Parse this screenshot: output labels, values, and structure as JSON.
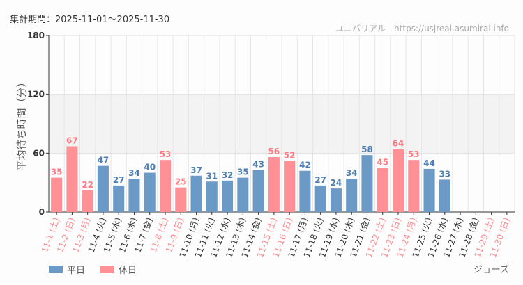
{
  "header": {
    "period": "集計期間：2025-11-01～2025-11-30",
    "credit": "ユニバリアル　https://usjreal.asumirai.info"
  },
  "attraction": "ジョーズ",
  "legend": {
    "weekday": "平日",
    "holiday": "休日"
  },
  "colors": {
    "weekday": "#6c9ac6",
    "holiday": "#ff9095",
    "band": "#f3f3f3"
  },
  "chart_data": {
    "type": "bar",
    "ylabel": "平均待ち時間（分）",
    "ylim": [
      0,
      180
    ],
    "yticks": [
      "0",
      "60",
      "120",
      "180"
    ],
    "grid": true,
    "shaded_band": [
      60,
      120
    ],
    "legend_position": "bottom-left",
    "categories": [
      "11-1 (土)",
      "11-2 (日)",
      "11-3 (月)",
      "11-4 (火)",
      "11-5 (水)",
      "11-6 (木)",
      "11-7 (金)",
      "11-8 (土)",
      "11-9 (日)",
      "11-10 (月)",
      "11-11 (火)",
      "11-12 (水)",
      "11-13 (木)",
      "11-14 (金)",
      "11-15 (土)",
      "11-16 (日)",
      "11-17 (月)",
      "11-18 (火)",
      "11-19 (水)",
      "11-20 (木)",
      "11-21 (金)",
      "11-22 (土)",
      "11-23 (日)",
      "11-24 (月)",
      "11-25 (火)",
      "11-26 (水)",
      "11-27 (木)",
      "11-28 (金)",
      "11-29 (土)",
      "11-30 (日)"
    ],
    "holiday": [
      true,
      true,
      true,
      false,
      false,
      false,
      false,
      true,
      true,
      false,
      false,
      false,
      false,
      false,
      true,
      true,
      false,
      false,
      false,
      false,
      false,
      true,
      true,
      true,
      false,
      false,
      false,
      false,
      true,
      true
    ],
    "values": [
      35,
      67,
      22,
      47,
      27,
      34,
      40,
      53,
      25,
      37,
      31,
      32,
      35,
      43,
      56,
      52,
      42,
      27,
      24,
      34,
      58,
      45,
      64,
      53,
      44,
      33,
      null,
      null,
      null,
      null
    ]
  }
}
